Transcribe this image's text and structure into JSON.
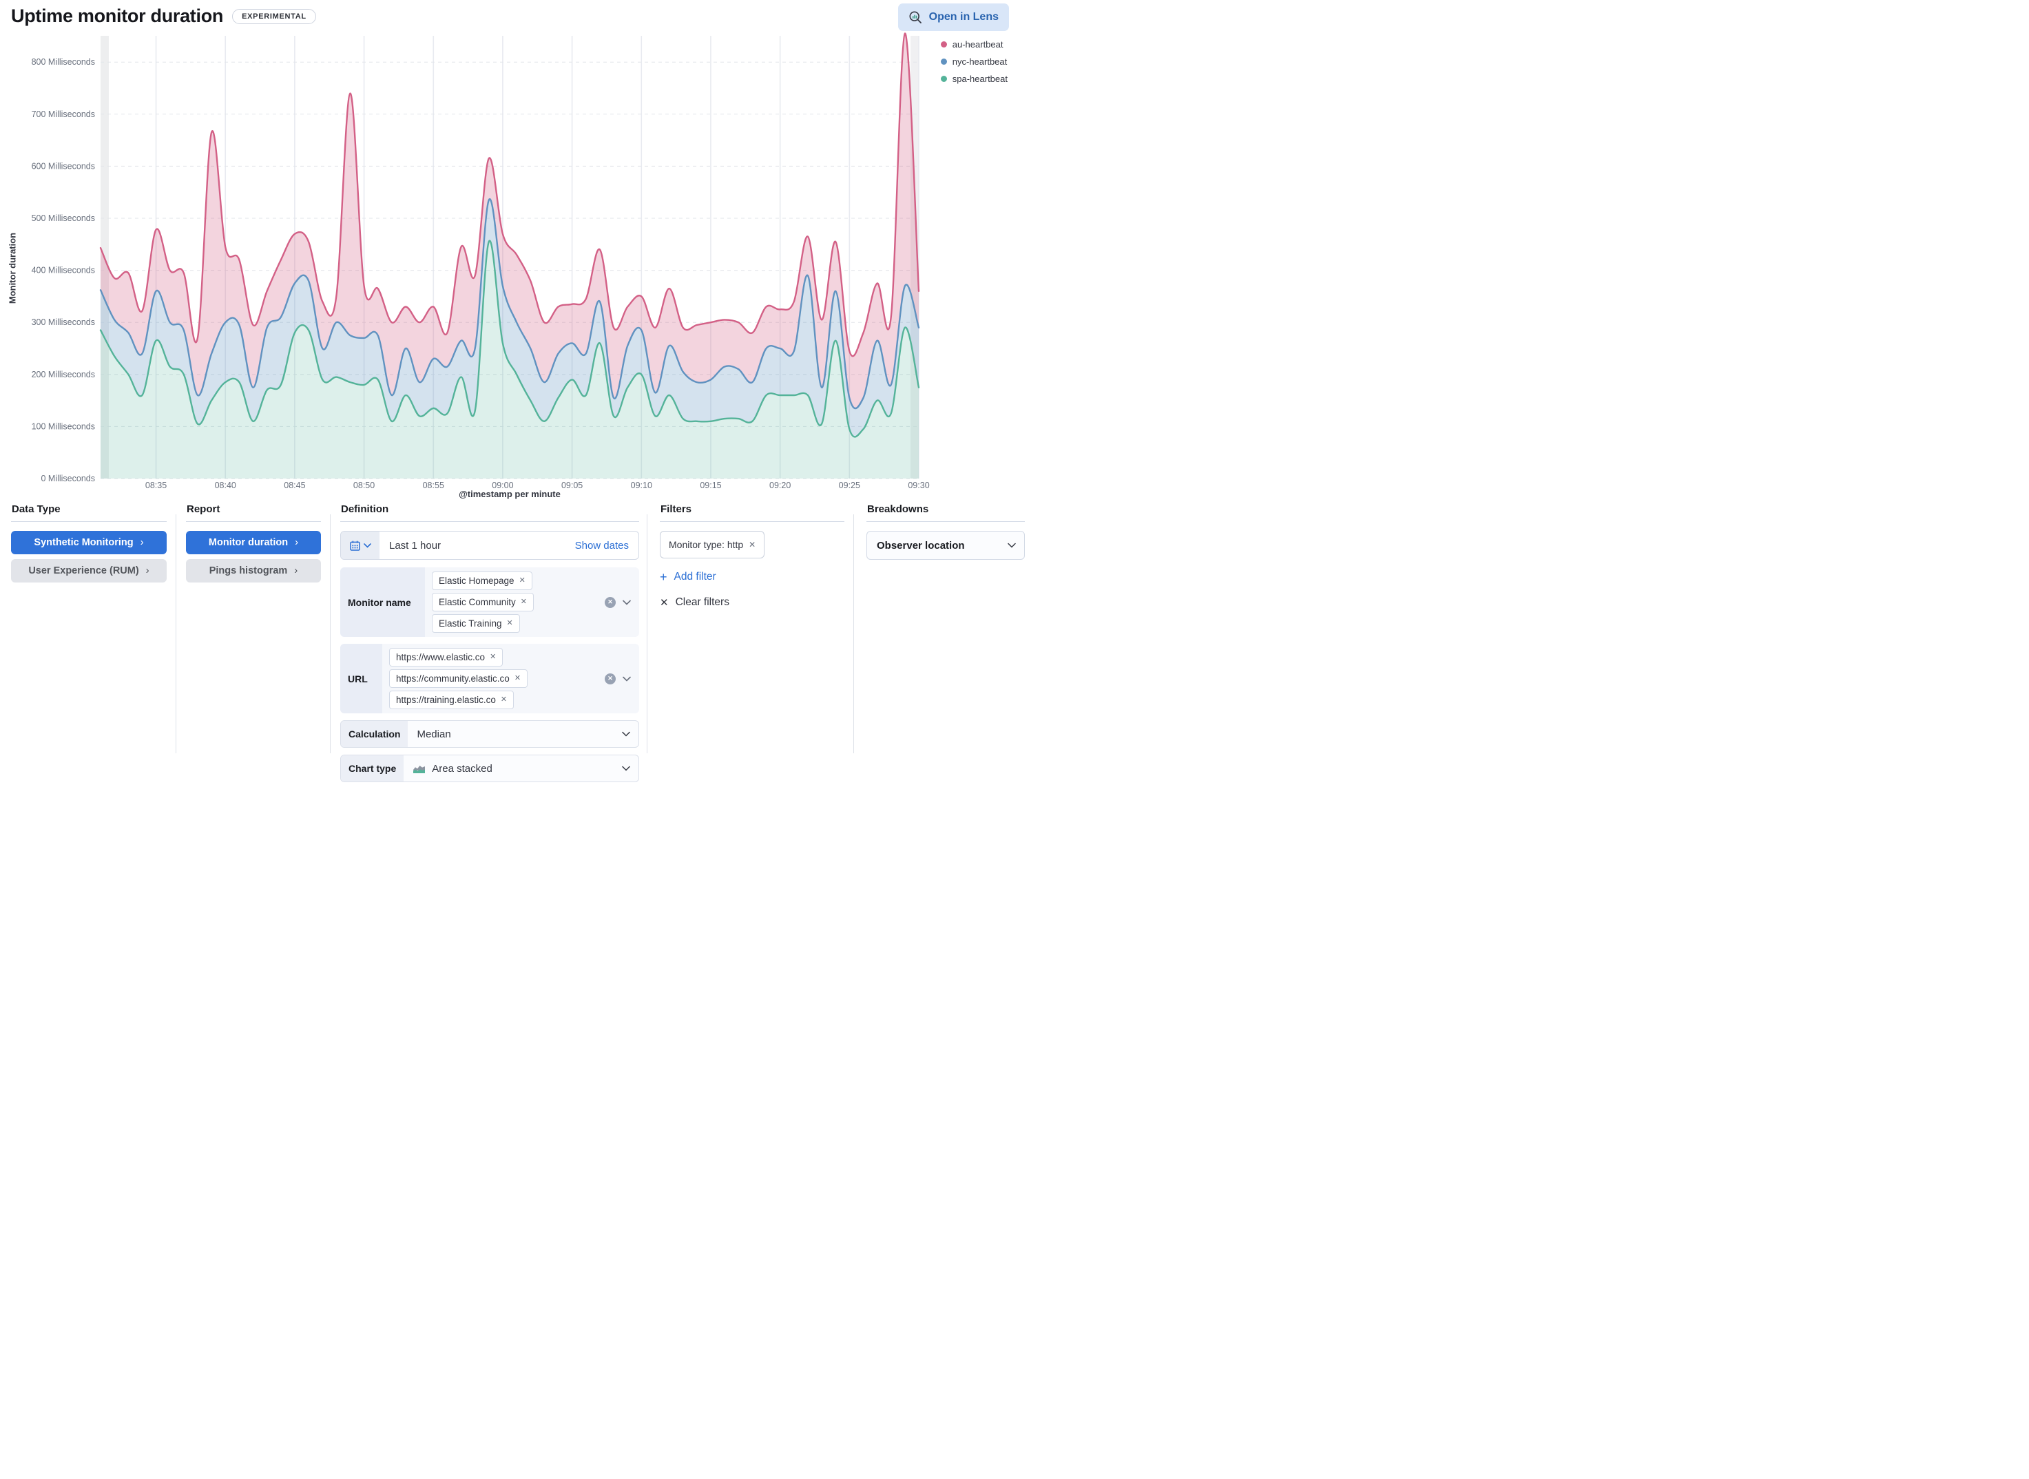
{
  "header": {
    "title": "Uptime monitor duration",
    "badge": "EXPERIMENTAL",
    "open_in_lens": "Open in Lens"
  },
  "chart_data": {
    "type": "area",
    "stacked": true,
    "xlabel": "@timestamp per minute",
    "ylabel": "Monitor duration",
    "y_unit": "Milliseconds",
    "y_ticks": [
      0,
      100,
      200,
      300,
      400,
      500,
      600,
      700,
      800
    ],
    "ylim": [
      0,
      876
    ],
    "legend_position": "top-right",
    "x": [
      "08:31",
      "08:32",
      "08:33",
      "08:34",
      "08:35",
      "08:36",
      "08:37",
      "08:38",
      "08:39",
      "08:40",
      "08:41",
      "08:42",
      "08:43",
      "08:44",
      "08:45",
      "08:46",
      "08:47",
      "08:48",
      "08:49",
      "08:50",
      "08:51",
      "08:52",
      "08:53",
      "08:54",
      "08:55",
      "08:56",
      "08:57",
      "08:58",
      "08:59",
      "09:00",
      "09:01",
      "09:02",
      "09:03",
      "09:04",
      "09:05",
      "09:06",
      "09:07",
      "09:08",
      "09:09",
      "09:10",
      "09:11",
      "09:12",
      "09:13",
      "09:14",
      "09:15",
      "09:16",
      "09:17",
      "09:18",
      "09:19",
      "09:20",
      "09:21",
      "09:22",
      "09:23",
      "09:24",
      "09:25",
      "09:26",
      "09:27",
      "09:28",
      "09:29",
      "09:30"
    ],
    "x_tick_labels": [
      "08:35",
      "08:40",
      "08:45",
      "08:50",
      "08:55",
      "09:00",
      "09:05",
      "09:10",
      "09:15",
      "09:20",
      "09:25",
      "09:30"
    ],
    "stack_bottom_to_top": [
      "spa-heartbeat",
      "nyc-heartbeat",
      "au-heartbeat"
    ],
    "series": [
      {
        "name": "au-heartbeat",
        "color": "#d36086",
        "fill": "rgba(211,96,134,0.27)",
        "values": [
          81,
          80,
          115,
          82,
          118,
          100,
          110,
          110,
          425,
          145,
          125,
          120,
          70,
          110,
          95,
          75,
          90,
          50,
          465,
          100,
          90,
          140,
          80,
          115,
          100,
          65,
          180,
          140,
          80,
          100,
          130,
          130,
          115,
          90,
          75,
          105,
          100,
          135,
          75,
          65,
          125,
          110,
          85,
          110,
          110,
          90,
          90,
          95,
          80,
          75,
          95,
          75,
          130,
          95,
          90,
          125,
          110,
          130,
          485,
          70
        ]
      },
      {
        "name": "nyc-heartbeat",
        "color": "#6092c0",
        "fill": "rgba(96,146,192,0.27)",
        "values": [
          77,
          70,
          80,
          80,
          95,
          85,
          85,
          55,
          90,
          115,
          110,
          65,
          120,
          130,
          95,
          95,
          60,
          105,
          90,
          90,
          85,
          50,
          90,
          65,
          95,
          90,
          70,
          120,
          80,
          110,
          100,
          100,
          75,
          85,
          70,
          80,
          80,
          35,
          80,
          85,
          45,
          95,
          90,
          75,
          80,
          100,
          95,
          75,
          90,
          90,
          85,
          230,
          70,
          95,
          60,
          60,
          115,
          55,
          80,
          115
        ]
      },
      {
        "name": "spa-heartbeat",
        "color": "#54b399",
        "fill": "rgba(84,179,153,0.20)",
        "values": [
          285,
          235,
          200,
          160,
          265,
          215,
          200,
          105,
          150,
          185,
          185,
          110,
          170,
          180,
          280,
          285,
          190,
          195,
          185,
          180,
          190,
          110,
          160,
          120,
          135,
          125,
          195,
          130,
          455,
          260,
          200,
          150,
          110,
          155,
          190,
          160,
          260,
          120,
          175,
          200,
          120,
          160,
          115,
          110,
          110,
          115,
          115,
          110,
          160,
          160,
          160,
          160,
          105,
          265,
          95,
          95,
          150,
          125,
          290,
          175
        ]
      }
    ]
  },
  "config": {
    "data_type": {
      "header": "Data Type",
      "buttons": [
        {
          "label": "Synthetic Monitoring"
        },
        {
          "label": "User Experience (RUM)"
        }
      ]
    },
    "report": {
      "header": "Report",
      "buttons": [
        {
          "label": "Monitor duration"
        },
        {
          "label": "Pings histogram"
        }
      ]
    },
    "definition": {
      "header": "Definition",
      "time_range": {
        "value": "Last 1 hour",
        "show_dates": "Show dates"
      },
      "monitor_name": {
        "label": "Monitor name",
        "pills": [
          "Elastic Homepage",
          "Elastic Community",
          "Elastic Training"
        ]
      },
      "url": {
        "label": "URL",
        "pills": [
          "https://www.elastic.co",
          "https://community.elastic.co",
          "https://training.elastic.co"
        ]
      },
      "calculation": {
        "label": "Calculation",
        "value": "Median"
      },
      "chart_type": {
        "label": "Chart type",
        "value": "Area stacked"
      }
    },
    "filters": {
      "header": "Filters",
      "pill": "Monitor type: http",
      "add_filter": "Add filter",
      "clear_filters": "Clear filters"
    },
    "breakdowns": {
      "header": "Breakdowns",
      "value": "Observer location"
    }
  }
}
